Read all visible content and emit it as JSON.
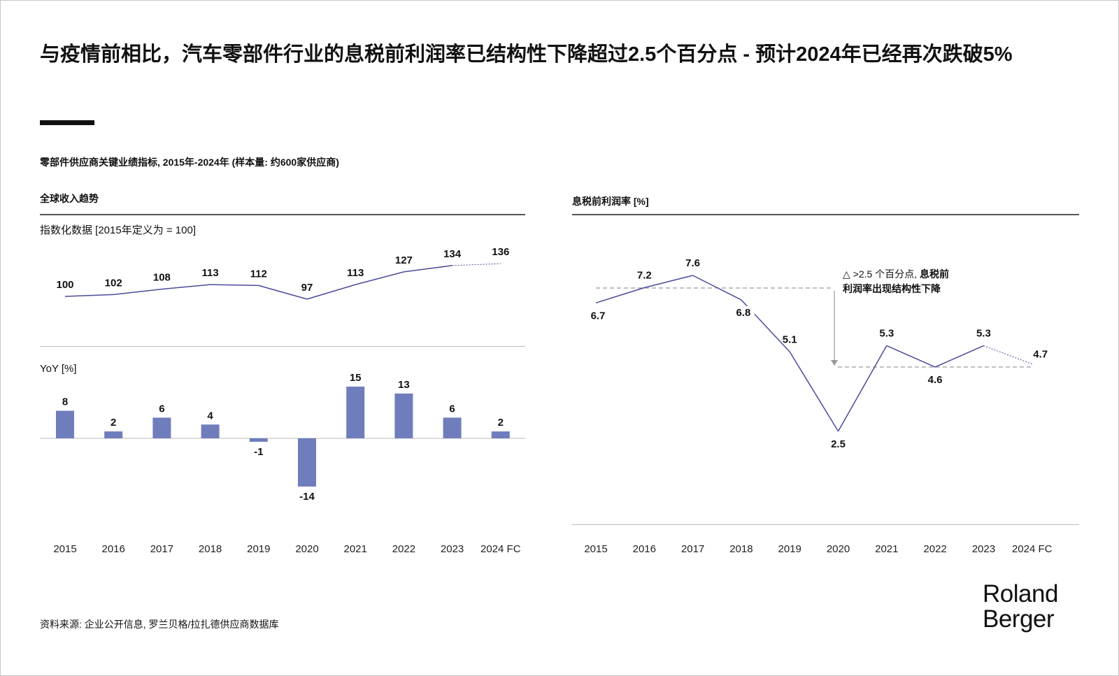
{
  "title": "与疫情前相比，汽车零部件行业的息税前利润率已结构性下降超过2.5个百分点 - 预计2024年已经再次跌破5%",
  "subtitle": "零部件供应商关键业绩指标, 2015年-2024年 (样本量: 约600家供应商)",
  "source": "资料来源: 企业公开信息, 罗兰贝格/拉扎德供应商数据库",
  "logo": {
    "line1": "Roland",
    "line2": "Berger"
  },
  "colors": {
    "line": "#4b4b9b",
    "bar": "#6f7dbd",
    "dashed": "#9a9a9a"
  },
  "chart_data": [
    {
      "type": "line",
      "section_title": "全球收入趋势",
      "ylabel": "指数化数据 [2015年定义为 = 100]",
      "categories": [
        "2015",
        "2016",
        "2017",
        "2018",
        "2019",
        "2020",
        "2021",
        "2022",
        "2023",
        "2024 FC"
      ],
      "values": [
        100,
        102,
        108,
        113,
        112,
        97,
        113,
        127,
        134,
        136
      ],
      "forecast_from_index": 8
    },
    {
      "type": "bar",
      "ylabel": "YoY [%]",
      "categories": [
        "2015",
        "2016",
        "2017",
        "2018",
        "2019",
        "2020",
        "2021",
        "2022",
        "2023",
        "2024 FC"
      ],
      "values": [
        8,
        2,
        6,
        4,
        -1,
        -14,
        15,
        13,
        6,
        2
      ]
    },
    {
      "type": "line",
      "section_title": "息税前利润率 [%]",
      "categories": [
        "2015",
        "2016",
        "2017",
        "2018",
        "2019",
        "2020",
        "2021",
        "2022",
        "2023",
        "2024 FC"
      ],
      "values": [
        6.7,
        7.2,
        7.6,
        6.8,
        5.1,
        2.5,
        5.3,
        4.6,
        5.3,
        4.7
      ],
      "forecast_from_index": 8,
      "annotation": {
        "line1_a": "△ >2.5 个百分点, ",
        "line1_b": "息税前",
        "line2": "利润率出现结构性下降"
      },
      "reference_levels": [
        7.2,
        4.6
      ]
    }
  ]
}
